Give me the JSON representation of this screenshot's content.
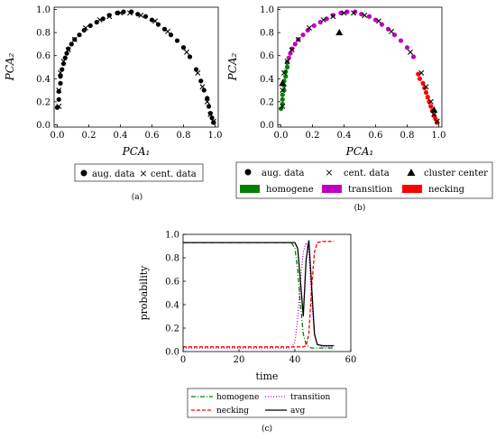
{
  "panels": [
    {
      "caption": "(a)",
      "legend": [
        {
          "label": "aug. data",
          "marker": "circle",
          "color": "#000000"
        },
        {
          "label": "cent. data",
          "marker": "x",
          "color": "#000000"
        }
      ]
    },
    {
      "caption": "(b)",
      "legend": [
        {
          "label": "aug. data",
          "marker": "circle",
          "color": "#000000"
        },
        {
          "label": "cent. data",
          "marker": "x",
          "color": "#000000"
        },
        {
          "label": "cluster center",
          "marker": "triangle",
          "color": "#000000"
        },
        {
          "label": "homogene",
          "marker": "patch",
          "color": "#008000"
        },
        {
          "label": "transition",
          "marker": "patch",
          "color": "#bf00bf"
        },
        {
          "label": "necking",
          "marker": "patch",
          "color": "#ff0000"
        }
      ]
    },
    {
      "caption": "(c)",
      "legend": [
        {
          "label": "homogene",
          "style": "dash-dot",
          "color": "#008000"
        },
        {
          "label": "transition",
          "style": "dotted",
          "color": "#bf00bf"
        },
        {
          "label": "necking",
          "style": "dashed",
          "color": "#ff0000"
        },
        {
          "label": "avg",
          "style": "solid",
          "color": "#000000"
        }
      ]
    }
  ],
  "chart_data": [
    {
      "type": "scatter",
      "panel": "a",
      "xlabel": "PCA₁",
      "ylabel": "PCA₂",
      "xlim": [
        -0.02,
        1.02
      ],
      "ylim": [
        -0.02,
        1.02
      ],
      "xticks": [
        "0.0",
        "0.2",
        "0.4",
        "0.6",
        "0.8",
        "1.0"
      ],
      "yticks": [
        "0.0",
        "0.2",
        "0.4",
        "0.6",
        "0.8",
        "1.0"
      ],
      "series": [
        {
          "name": "aug. data",
          "marker": "circle",
          "color": "#000000",
          "x": [
            0.0,
            0.01,
            0.01,
            0.02,
            0.02,
            0.03,
            0.04,
            0.05,
            0.06,
            0.07,
            0.09,
            0.11,
            0.14,
            0.17,
            0.21,
            0.25,
            0.29,
            0.33,
            0.38,
            0.42,
            0.47,
            0.51,
            0.56,
            0.6,
            0.64,
            0.68,
            0.72,
            0.76,
            0.8,
            0.84,
            0.88,
            0.91,
            0.93,
            0.95,
            0.96,
            0.97,
            0.98,
            0.99
          ],
          "y": [
            0.15,
            0.22,
            0.29,
            0.36,
            0.42,
            0.48,
            0.53,
            0.58,
            0.62,
            0.66,
            0.7,
            0.74,
            0.78,
            0.82,
            0.86,
            0.89,
            0.92,
            0.95,
            0.97,
            0.98,
            0.98,
            0.96,
            0.94,
            0.91,
            0.87,
            0.83,
            0.78,
            0.73,
            0.67,
            0.59,
            0.48,
            0.38,
            0.3,
            0.23,
            0.16,
            0.1,
            0.06,
            0.02
          ]
        },
        {
          "name": "cent. data",
          "marker": "x",
          "color": "#000000",
          "x": [
            0.01,
            0.01,
            0.02,
            0.04,
            0.07,
            0.11,
            0.18,
            0.27,
            0.33,
            0.4,
            0.46,
            0.53,
            0.62,
            0.7,
            0.82,
            0.89,
            0.92,
            0.95,
            0.97,
            0.99
          ],
          "y": [
            0.16,
            0.3,
            0.45,
            0.55,
            0.65,
            0.74,
            0.84,
            0.91,
            0.94,
            0.97,
            0.97,
            0.95,
            0.9,
            0.81,
            0.63,
            0.45,
            0.33,
            0.2,
            0.09,
            0.03
          ]
        }
      ]
    },
    {
      "type": "scatter",
      "panel": "b",
      "xlabel": "PCA₁",
      "ylabel": "PCA₂",
      "xlim": [
        -0.02,
        1.02
      ],
      "ylim": [
        -0.02,
        1.02
      ],
      "xticks": [
        "0.0",
        "0.2",
        "0.4",
        "0.6",
        "0.8",
        "1.0"
      ],
      "yticks": [
        "0.0",
        "0.2",
        "0.4",
        "0.6",
        "0.8",
        "1.0"
      ],
      "series": [
        {
          "name": "homogene",
          "marker": "circle",
          "color": "#008000",
          "x": [
            0.0,
            0.01,
            0.01,
            0.01,
            0.02,
            0.02,
            0.02,
            0.03,
            0.03,
            0.04,
            0.04
          ],
          "y": [
            0.14,
            0.18,
            0.22,
            0.26,
            0.3,
            0.34,
            0.38,
            0.42,
            0.46,
            0.5,
            0.54
          ]
        },
        {
          "name": "transition",
          "marker": "circle",
          "color": "#bf00bf",
          "x": [
            0.05,
            0.06,
            0.07,
            0.09,
            0.11,
            0.14,
            0.17,
            0.21,
            0.25,
            0.29,
            0.33,
            0.38,
            0.42,
            0.47,
            0.51,
            0.56,
            0.6,
            0.64,
            0.68,
            0.72,
            0.76,
            0.8,
            0.84
          ],
          "y": [
            0.58,
            0.62,
            0.66,
            0.7,
            0.74,
            0.78,
            0.82,
            0.86,
            0.89,
            0.92,
            0.95,
            0.97,
            0.98,
            0.98,
            0.96,
            0.94,
            0.91,
            0.87,
            0.83,
            0.78,
            0.73,
            0.67,
            0.59
          ]
        },
        {
          "name": "necking",
          "marker": "circle",
          "color": "#ff0000",
          "x": [
            0.87,
            0.88,
            0.9,
            0.91,
            0.92,
            0.93,
            0.94,
            0.95,
            0.96,
            0.97,
            0.98,
            0.99
          ],
          "y": [
            0.44,
            0.4,
            0.36,
            0.32,
            0.28,
            0.24,
            0.2,
            0.16,
            0.12,
            0.08,
            0.05,
            0.02
          ]
        },
        {
          "name": "cluster center",
          "marker": "triangle",
          "color": "#000000",
          "x": [
            0.01,
            0.37,
            0.97
          ],
          "y": [
            0.36,
            0.8,
            0.13
          ]
        }
      ]
    },
    {
      "type": "line",
      "panel": "c",
      "xlabel": "time",
      "ylabel": "probability",
      "xlim": [
        0,
        60
      ],
      "ylim": [
        0.0,
        1.0
      ],
      "xticks": [
        "0",
        "20",
        "40",
        "60"
      ],
      "yticks": [
        "0.0",
        "0.2",
        "0.4",
        "0.6",
        "0.8",
        "1.0"
      ],
      "series": [
        {
          "name": "homogene",
          "style": "dash-dot",
          "color": "#008000",
          "x": [
            0,
            38,
            39,
            40,
            41,
            42,
            43,
            44,
            45,
            46,
            47,
            48,
            50,
            52,
            54
          ],
          "y": [
            0.93,
            0.93,
            0.92,
            0.88,
            0.7,
            0.4,
            0.15,
            0.06,
            0.04,
            0.03,
            0.03,
            0.03,
            0.03,
            0.03,
            0.03
          ]
        },
        {
          "name": "transition",
          "style": "dotted",
          "color": "#bf00bf",
          "x": [
            0,
            38,
            39,
            40,
            41,
            42,
            43,
            44,
            45,
            46,
            47,
            48,
            50,
            52,
            54
          ],
          "y": [
            0.03,
            0.03,
            0.04,
            0.08,
            0.28,
            0.6,
            0.85,
            0.93,
            0.85,
            0.45,
            0.15,
            0.06,
            0.04,
            0.04,
            0.04
          ]
        },
        {
          "name": "necking",
          "style": "dashed",
          "color": "#ff0000",
          "x": [
            0,
            38,
            39,
            40,
            41,
            42,
            43,
            44,
            45,
            46,
            47,
            48,
            50,
            52,
            54
          ],
          "y": [
            0.04,
            0.04,
            0.04,
            0.04,
            0.04,
            0.04,
            0.04,
            0.05,
            0.15,
            0.55,
            0.85,
            0.93,
            0.94,
            0.94,
            0.94
          ]
        },
        {
          "name": "avg",
          "style": "solid",
          "color": "#000000",
          "x": [
            0,
            40,
            41,
            42,
            43,
            44,
            45,
            46,
            47,
            48,
            50,
            52,
            54
          ],
          "y": [
            0.93,
            0.93,
            0.88,
            0.6,
            0.3,
            0.78,
            0.95,
            0.55,
            0.15,
            0.06,
            0.05,
            0.05,
            0.05
          ]
        }
      ]
    }
  ]
}
